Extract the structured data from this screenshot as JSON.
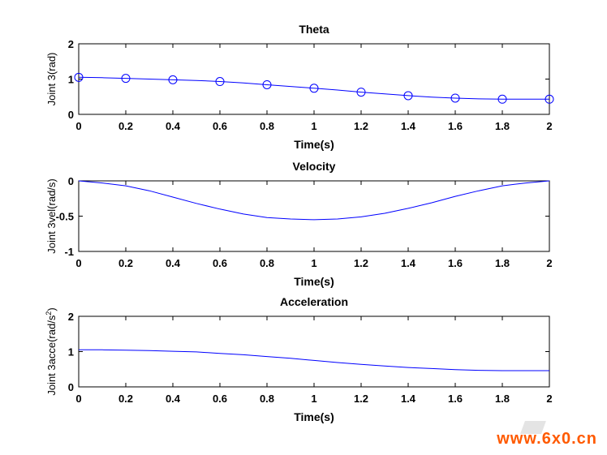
{
  "chart_data": [
    {
      "type": "line",
      "title": "Theta",
      "xlabel": "Time(s)",
      "ylabel": "Joint 3(rad)",
      "xlim": [
        0,
        2
      ],
      "ylim": [
        0,
        2
      ],
      "xticks": [
        "0",
        "0.2",
        "0.4",
        "0.6",
        "0.8",
        "1",
        "1.2",
        "1.4",
        "1.6",
        "1.8",
        "2"
      ],
      "yticks": [
        "0",
        "1",
        "2"
      ],
      "grid": false,
      "series": [
        {
          "style": "line",
          "color": "#0000ff",
          "x": [
            0,
            0.1,
            0.2,
            0.3,
            0.4,
            0.5,
            0.6,
            0.7,
            0.8,
            0.9,
            1.0,
            1.1,
            1.2,
            1.3,
            1.4,
            1.5,
            1.6,
            1.7,
            1.8,
            1.9,
            2.0
          ],
          "values": [
            1.05,
            1.04,
            1.02,
            1.0,
            0.98,
            0.96,
            0.93,
            0.89,
            0.84,
            0.79,
            0.74,
            0.69,
            0.63,
            0.58,
            0.53,
            0.49,
            0.46,
            0.44,
            0.43,
            0.43,
            0.43
          ]
        },
        {
          "style": "markers",
          "marker": "circle",
          "color": "#0000ff",
          "x": [
            0,
            0.2,
            0.4,
            0.6,
            0.8,
            1.0,
            1.2,
            1.4,
            1.6,
            1.8,
            2.0
          ],
          "values": [
            1.05,
            1.02,
            0.98,
            0.93,
            0.84,
            0.74,
            0.63,
            0.53,
            0.46,
            0.43,
            0.43
          ]
        }
      ]
    },
    {
      "type": "line",
      "title": "Velocity",
      "xlabel": "Time(s)",
      "ylabel": "Joint 3vel(rad/s)",
      "xlim": [
        0,
        2
      ],
      "ylim": [
        -1,
        0
      ],
      "xticks": [
        "0",
        "0.2",
        "0.4",
        "0.6",
        "0.8",
        "1",
        "1.2",
        "1.4",
        "1.6",
        "1.8",
        "2"
      ],
      "yticks": [
        "-1",
        "-0.5",
        "0"
      ],
      "grid": false,
      "series": [
        {
          "style": "line",
          "color": "#0000ff",
          "x": [
            0,
            0.1,
            0.2,
            0.3,
            0.4,
            0.5,
            0.6,
            0.7,
            0.8,
            0.9,
            1.0,
            1.1,
            1.2,
            1.3,
            1.4,
            1.5,
            1.6,
            1.7,
            1.8,
            1.9,
            2.0
          ],
          "values": [
            0,
            -0.03,
            -0.07,
            -0.14,
            -0.23,
            -0.32,
            -0.4,
            -0.47,
            -0.52,
            -0.54,
            -0.55,
            -0.54,
            -0.51,
            -0.46,
            -0.39,
            -0.31,
            -0.22,
            -0.14,
            -0.07,
            -0.03,
            0
          ]
        }
      ]
    },
    {
      "type": "line",
      "title": "Acceleration",
      "xlabel": "Time(s)",
      "ylabel": "Joint 3acce(rad/s",
      "ylabel_sup": "2",
      "ylabel_tail": ")",
      "xlim": [
        0,
        2
      ],
      "ylim": [
        0,
        2
      ],
      "xticks": [
        "0",
        "0.2",
        "0.4",
        "0.6",
        "0.8",
        "1",
        "1.2",
        "1.4",
        "1.6",
        "1.8",
        "2"
      ],
      "yticks": [
        "0",
        "1",
        "2"
      ],
      "grid": false,
      "series": [
        {
          "style": "line",
          "color": "#0000ff",
          "x": [
            0,
            0.1,
            0.2,
            0.3,
            0.4,
            0.5,
            0.6,
            0.7,
            0.8,
            0.9,
            1.0,
            1.1,
            1.2,
            1.3,
            1.4,
            1.5,
            1.6,
            1.7,
            1.8,
            1.9,
            2.0
          ],
          "values": [
            1.05,
            1.05,
            1.04,
            1.03,
            1.01,
            0.99,
            0.95,
            0.91,
            0.86,
            0.81,
            0.75,
            0.69,
            0.64,
            0.59,
            0.55,
            0.52,
            0.49,
            0.47,
            0.46,
            0.46,
            0.46
          ]
        }
      ]
    }
  ],
  "watermark": "www.6x0.cn"
}
